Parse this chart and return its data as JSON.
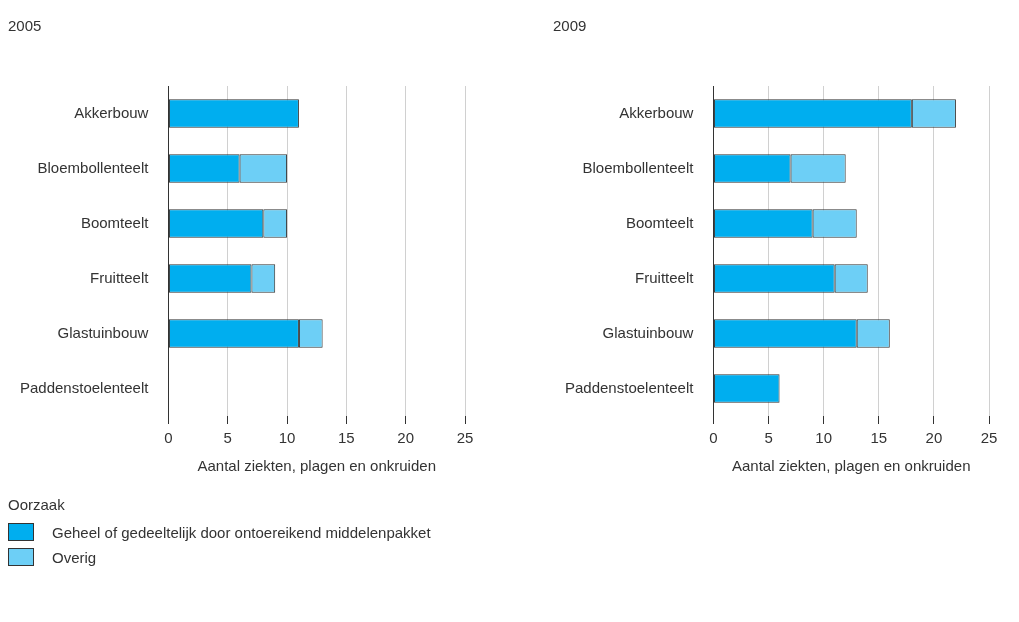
{
  "chart_data": [
    {
      "type": "bar",
      "title": "2005",
      "orientation": "horizontal",
      "stacked": true,
      "categories": [
        "Akkerbouw",
        "Bloembollenteelt",
        "Boomteelt",
        "Fruitteelt",
        "Glastuinbouw",
        "Paddenstoelenteelt"
      ],
      "series": [
        {
          "name": "Geheel of gedeeltelijk door ontoereikend middelenpakket",
          "color": "#00aeef",
          "values": [
            11,
            6,
            8,
            7,
            11,
            0
          ]
        },
        {
          "name": "Overig",
          "color": "#6dcff6",
          "values": [
            0,
            4,
            2,
            2,
            2,
            0
          ]
        }
      ],
      "xlabel": "Aantal ziekten, plagen en onkruiden",
      "xlim": [
        0,
        25
      ],
      "xticks": [
        0,
        5,
        10,
        15,
        20,
        25
      ],
      "grid": "x",
      "legend": "bottom",
      "legend_title": "Oorzaak"
    },
    {
      "type": "bar",
      "title": "2009",
      "orientation": "horizontal",
      "stacked": true,
      "categories": [
        "Akkerbouw",
        "Bloembollenteelt",
        "Boomteelt",
        "Fruitteelt",
        "Glastuinbouw",
        "Paddenstoelenteelt"
      ],
      "series": [
        {
          "color": "#00aeef",
          "values": [
            18,
            7,
            9,
            11,
            13,
            6
          ]
        },
        {
          "color": "#6dcff6",
          "values": [
            4,
            5,
            4,
            3,
            3,
            0
          ]
        }
      ],
      "xlabel": "Aantal ziekten, plagen en onkruiden",
      "xlim": [
        0,
        25
      ],
      "xticks": [
        0,
        5,
        10,
        15,
        20,
        25
      ],
      "grid": "x"
    }
  ]
}
